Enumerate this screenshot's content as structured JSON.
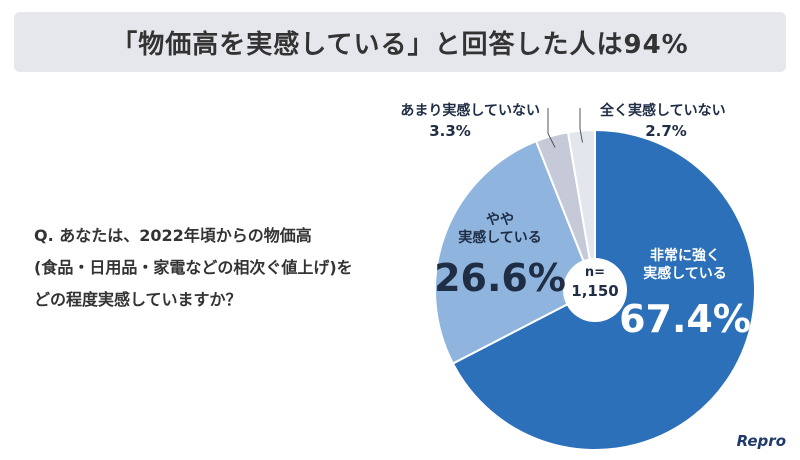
{
  "chart_data": {
    "type": "pie",
    "title": "「物価高を実感している」と回答した人は94%",
    "question": [
      "Q. あなたは、2022年頃からの物価高",
      "(食品・日用品・家電などの相次ぐ値上げ)を",
      "どの程度実感していますか？"
    ],
    "categories": [
      "非常に強く\n実感している",
      "やや\n実感している",
      "あまり実感していない",
      "全く実感していない"
    ],
    "values": [
      67.4,
      26.6,
      3.3,
      2.7
    ],
    "value_labels": [
      "67.4%",
      "26.6%",
      "3.3%",
      "2.7%"
    ],
    "colors": [
      "#2b70b9",
      "#8fb5de",
      "#c6cad8",
      "#e4e6ee"
    ],
    "sample_label": "n=",
    "sample_size": "1,150",
    "logo": "Repro"
  }
}
